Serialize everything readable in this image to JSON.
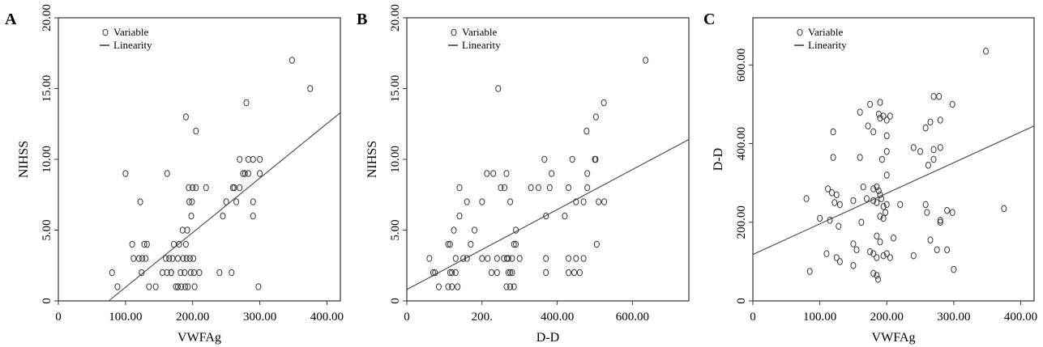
{
  "chart_data": [
    {
      "panel": "A",
      "type": "scatter",
      "xlabel": "VWFAg",
      "ylabel": "NIHSS",
      "xlim": [
        0,
        420
      ],
      "ylim": [
        0,
        20
      ],
      "x_tick_labels": [
        "0",
        "100.00",
        "200.00",
        "300.00",
        "400.00"
      ],
      "y_tick_labels": [
        "0",
        "5.00",
        "10.00",
        "15.00",
        "20.00"
      ],
      "legend": [
        "Variable",
        "Linearity"
      ],
      "legend_position": "top-left",
      "grid": false,
      "series": [
        {
          "name": "Variable",
          "points": [
            [
              100,
              9
            ],
            [
              122,
              7
            ],
            [
              190,
              13
            ],
            [
              205,
              12
            ],
            [
              280,
              14
            ],
            [
              348,
              17
            ],
            [
              375,
              15
            ],
            [
              262,
              8
            ],
            [
              278,
              9
            ],
            [
              270,
              10
            ],
            [
              283,
              10
            ],
            [
              290,
              10
            ],
            [
              300,
              10
            ],
            [
              275,
              9
            ],
            [
              290,
              7
            ],
            [
              290,
              6
            ],
            [
              300,
              9
            ],
            [
              298,
              1
            ],
            [
              80,
              2
            ],
            [
              88,
              1
            ],
            [
              110,
              4
            ],
            [
              112,
              3
            ],
            [
              120,
              3
            ],
            [
              125,
              3
            ],
            [
              128,
              4
            ],
            [
              130,
              3
            ],
            [
              124,
              2
            ],
            [
              132,
              4
            ],
            [
              135,
              1
            ],
            [
              145,
              1
            ],
            [
              155,
              2
            ],
            [
              160,
              3
            ],
            [
              162,
              2
            ],
            [
              165,
              3
            ],
            [
              168,
              2
            ],
            [
              170,
              3
            ],
            [
              172,
              4
            ],
            [
              175,
              1
            ],
            [
              178,
              3
            ],
            [
              180,
              4
            ],
            [
              182,
              2
            ],
            [
              183,
              1
            ],
            [
              185,
              5
            ],
            [
              186,
              3
            ],
            [
              188,
              2
            ],
            [
              189,
              1
            ],
            [
              190,
              4
            ],
            [
              191,
              3
            ],
            [
              192,
              5
            ],
            [
              193,
              1
            ],
            [
              195,
              7
            ],
            [
              196,
              3
            ],
            [
              197,
              2
            ],
            [
              198,
              6
            ],
            [
              199,
              7
            ],
            [
              200,
              8
            ],
            [
              201,
              3
            ],
            [
              202,
              2
            ],
            [
              203,
              1
            ],
            [
              205,
              8
            ],
            [
              210,
              2
            ],
            [
              220,
              8
            ],
            [
              240,
              2
            ],
            [
              245,
              6
            ],
            [
              250,
              7
            ],
            [
              258,
              2
            ],
            [
              260,
              8
            ],
            [
              265,
              7
            ],
            [
              270,
              8
            ],
            [
              283,
              9
            ],
            [
              162,
              9
            ],
            [
              168,
              2
            ],
            [
              178,
              1
            ],
            [
              194,
              8
            ]
          ]
        },
        {
          "name": "Linearity",
          "line": [
            [
              75,
              0
            ],
            [
              420,
              13.3
            ]
          ]
        }
      ]
    },
    {
      "panel": "B",
      "type": "scatter",
      "xlabel": "D-D",
      "ylabel": "NIHSS",
      "xlim": [
        0,
        750
      ],
      "ylim": [
        0,
        20
      ],
      "x_tick_labels": [
        "0",
        "200.",
        "400.00",
        "600.00"
      ],
      "y_tick_labels": [
        "0",
        "5.00",
        "10.00",
        "15.00",
        "20.00"
      ],
      "legend": [
        "Variable",
        "Linearity"
      ],
      "legend_position": "top-left",
      "grid": false,
      "series": [
        {
          "name": "Variable",
          "points": [
            [
              635,
              17
            ],
            [
              243,
              15
            ],
            [
              524,
              14
            ],
            [
              503,
              13
            ],
            [
              478,
              12
            ],
            [
              366,
              10
            ],
            [
              440,
              10
            ],
            [
              500,
              10
            ],
            [
              502,
              10
            ],
            [
              213,
              9
            ],
            [
              230,
              9
            ],
            [
              265,
              9
            ],
            [
              385,
              9
            ],
            [
              480,
              9
            ],
            [
              480,
              8
            ],
            [
              430,
              8
            ],
            [
              330,
              8
            ],
            [
              350,
              8
            ],
            [
              380,
              8
            ],
            [
              250,
              8
            ],
            [
              260,
              8
            ],
            [
              140,
              8
            ],
            [
              160,
              7
            ],
            [
              275,
              7
            ],
            [
              450,
              7
            ],
            [
              470,
              7
            ],
            [
              510,
              7
            ],
            [
              525,
              7
            ],
            [
              200,
              7
            ],
            [
              370,
              6
            ],
            [
              420,
              6
            ],
            [
              140,
              6
            ],
            [
              180,
              5
            ],
            [
              290,
              5
            ],
            [
              125,
              5
            ],
            [
              110,
              4
            ],
            [
              115,
              4
            ],
            [
              285,
              4
            ],
            [
              290,
              4
            ],
            [
              505,
              4
            ],
            [
              170,
              4
            ],
            [
              60,
              3
            ],
            [
              130,
              3
            ],
            [
              150,
              3
            ],
            [
              160,
              3
            ],
            [
              200,
              3
            ],
            [
              215,
              3
            ],
            [
              240,
              3
            ],
            [
              258,
              3
            ],
            [
              266,
              3
            ],
            [
              270,
              3
            ],
            [
              280,
              3
            ],
            [
              300,
              3
            ],
            [
              370,
              3
            ],
            [
              430,
              3
            ],
            [
              450,
              3
            ],
            [
              470,
              3
            ],
            [
              70,
              2
            ],
            [
              75,
              2
            ],
            [
              115,
              2
            ],
            [
              120,
              2
            ],
            [
              130,
              2
            ],
            [
              225,
              2
            ],
            [
              240,
              2
            ],
            [
              270,
              2
            ],
            [
              275,
              2
            ],
            [
              280,
              2
            ],
            [
              370,
              2
            ],
            [
              430,
              2
            ],
            [
              445,
              2
            ],
            [
              460,
              2
            ],
            [
              85,
              1
            ],
            [
              110,
              1
            ],
            [
              120,
              1
            ],
            [
              135,
              1
            ],
            [
              265,
              1
            ],
            [
              275,
              1
            ],
            [
              285,
              1
            ]
          ]
        },
        {
          "name": "Linearity",
          "line": [
            [
              0,
              0.8
            ],
            [
              750,
              11.4
            ]
          ]
        }
      ]
    },
    {
      "panel": "C",
      "type": "scatter",
      "xlabel": "VWFAg",
      "ylabel": "D-D",
      "xlim": [
        0,
        420
      ],
      "ylim": [
        0,
        720
      ],
      "x_tick_labels": [
        "0",
        "100.00",
        "200.00",
        "300.00",
        "400.00"
      ],
      "y_tick_labels": [
        "0",
        "200.00",
        "400.00",
        "600.00"
      ],
      "legend": [
        "Variable",
        "Linearity"
      ],
      "legend_position": "top-left",
      "grid": false,
      "series": [
        {
          "name": "Variable",
          "points": [
            [
              348,
              635
            ],
            [
              270,
              520
            ],
            [
              278,
              520
            ],
            [
              190,
              505
            ],
            [
              175,
              500
            ],
            [
              298,
              500
            ],
            [
              160,
              480
            ],
            [
              188,
              475
            ],
            [
              195,
              470
            ],
            [
              205,
              470
            ],
            [
              190,
              465
            ],
            [
              200,
              460
            ],
            [
              265,
              455
            ],
            [
              280,
              460
            ],
            [
              172,
              445
            ],
            [
              258,
              440
            ],
            [
              120,
              430
            ],
            [
              180,
              430
            ],
            [
              200,
              420
            ],
            [
              240,
              390
            ],
            [
              250,
              380
            ],
            [
              270,
              385
            ],
            [
              280,
              390
            ],
            [
              200,
              380
            ],
            [
              262,
              345
            ],
            [
              193,
              360
            ],
            [
              270,
              360
            ],
            [
              120,
              365
            ],
            [
              160,
              365
            ],
            [
              200,
              320
            ],
            [
              165,
              290
            ],
            [
              180,
              285
            ],
            [
              185,
              290
            ],
            [
              188,
              280
            ],
            [
              190,
              270
            ],
            [
              112,
              285
            ],
            [
              118,
              275
            ],
            [
              125,
              270
            ],
            [
              122,
              250
            ],
            [
              130,
              245
            ],
            [
              150,
              255
            ],
            [
              170,
              260
            ],
            [
              180,
              255
            ],
            [
              185,
              250
            ],
            [
              192,
              260
            ],
            [
              195,
              240
            ],
            [
              200,
              245
            ],
            [
              198,
              225
            ],
            [
              220,
              245
            ],
            [
              258,
              245
            ],
            [
              290,
              230
            ],
            [
              298,
              225
            ],
            [
              80,
              260
            ],
            [
              100,
              210
            ],
            [
              115,
              205
            ],
            [
              190,
              215
            ],
            [
              195,
              210
            ],
            [
              260,
              225
            ],
            [
              280,
              205
            ],
            [
              280,
              200
            ],
            [
              375,
              235
            ],
            [
              128,
              190
            ],
            [
              162,
              200
            ],
            [
              185,
              165
            ],
            [
              190,
              150
            ],
            [
              210,
              160
            ],
            [
              150,
              145
            ],
            [
              155,
              130
            ],
            [
              175,
              125
            ],
            [
              180,
              120
            ],
            [
              185,
              110
            ],
            [
              195,
              115
            ],
            [
              200,
              120
            ],
            [
              205,
              110
            ],
            [
              240,
              115
            ],
            [
              265,
              155
            ],
            [
              275,
              130
            ],
            [
              110,
              120
            ],
            [
              125,
              110
            ],
            [
              130,
              100
            ],
            [
              150,
              90
            ],
            [
              180,
              70
            ],
            [
              185,
              65
            ],
            [
              187,
              55
            ],
            [
              290,
              130
            ],
            [
              300,
              80
            ],
            [
              85,
              75
            ]
          ]
        },
        {
          "name": "Linearity",
          "line": [
            [
              0,
              118
            ],
            [
              420,
              445
            ]
          ]
        }
      ]
    }
  ]
}
